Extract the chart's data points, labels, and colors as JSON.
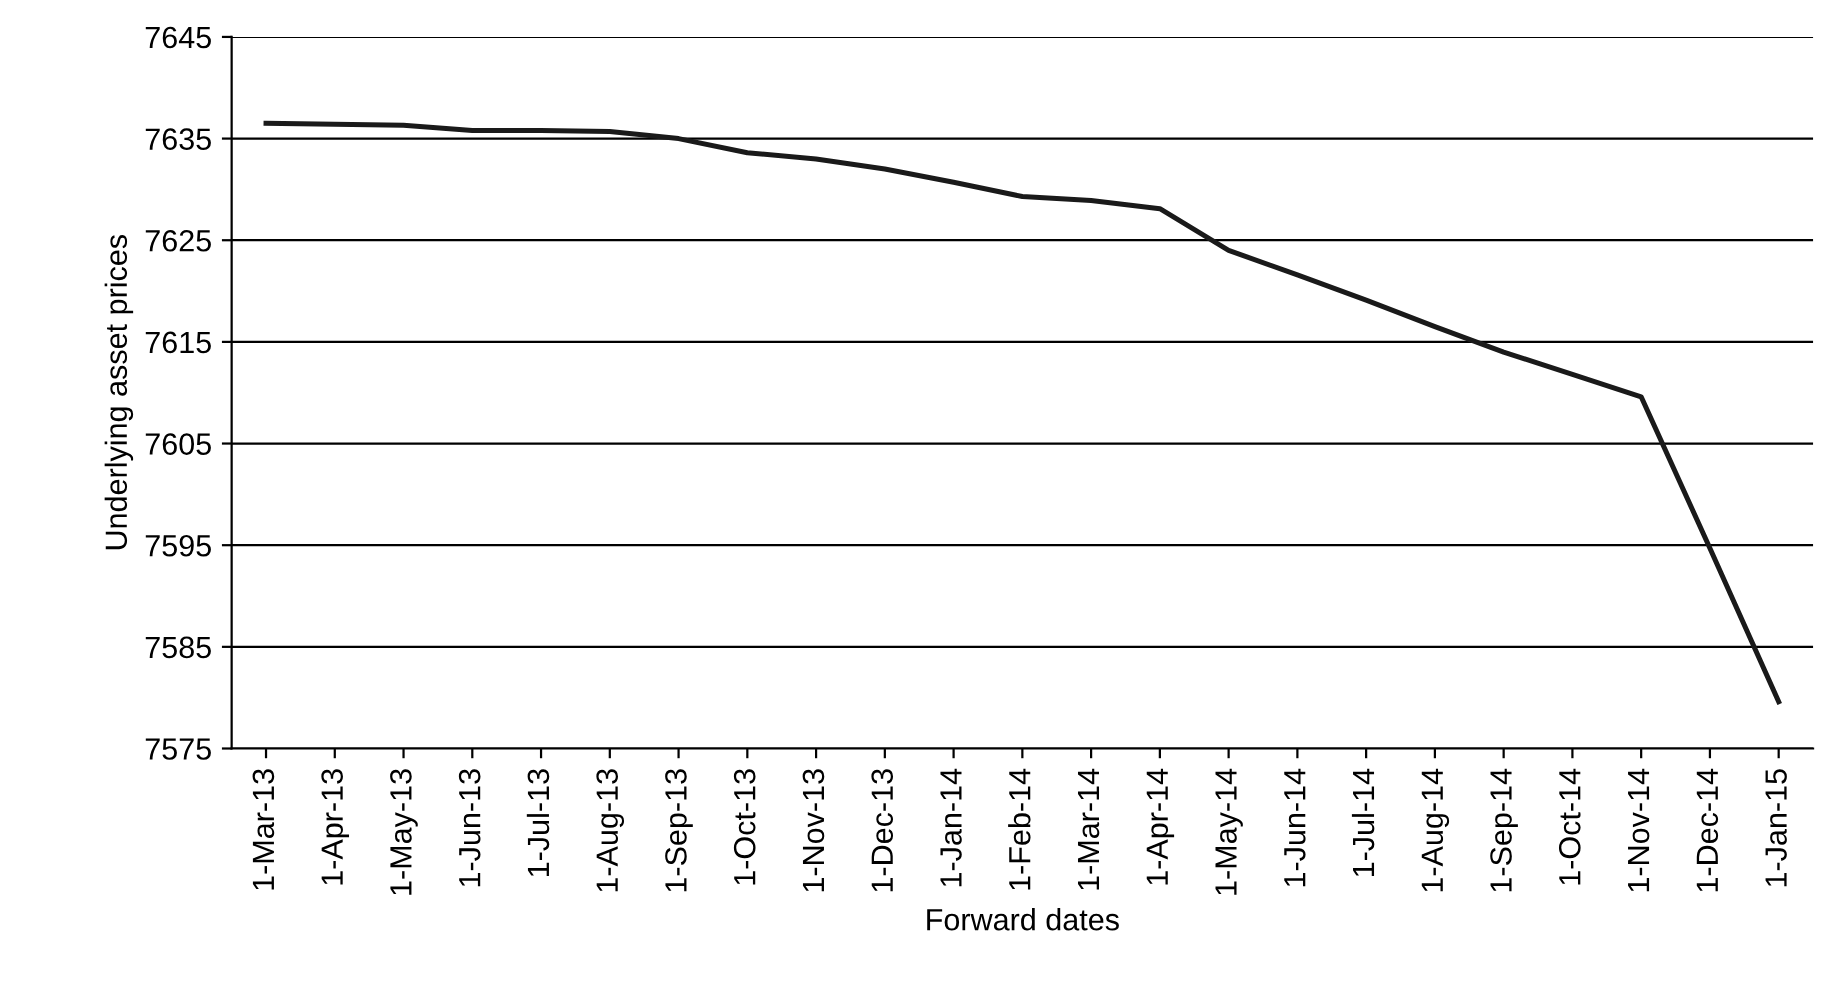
{
  "chart_data": {
    "type": "line",
    "xlabel": "Forward dates",
    "ylabel": "Underlying asset prices",
    "categories": [
      "1-Mar-13",
      "1-Apr-13",
      "1-May-13",
      "1-Jun-13",
      "1-Jul-13",
      "1-Aug-13",
      "1-Sep-13",
      "1-Oct-13",
      "1-Nov-13",
      "1-Dec-13",
      "1-Jan-14",
      "1-Feb-14",
      "1-Mar-14",
      "1-Apr-14",
      "1-May-14",
      "1-Jun-14",
      "1-Jul-14",
      "1-Aug-14",
      "1-Sep-14",
      "1-Oct-14",
      "1-Nov-14",
      "1-Dec-14",
      "1-Jan-15"
    ],
    "series": [
      {
        "color": "#1a1a1a",
        "values": [
          7636.5,
          7636.4,
          7636.3,
          7635.8,
          7635.8,
          7635.7,
          7635.0,
          7633.6,
          7633.0,
          7632.0,
          7630.7,
          7629.3,
          7628.9,
          7628.1,
          7624.0,
          7621.6,
          7619.1,
          7616.5,
          7614.0,
          7611.8,
          7609.6,
          7594.7,
          7579.6
        ]
      }
    ],
    "ylim": [
      7575,
      7645
    ],
    "yticks": [
      7575,
      7585,
      7595,
      7605,
      7615,
      7625,
      7635,
      7645
    ],
    "grid": "y",
    "marker": "none",
    "line_style": "solid"
  }
}
